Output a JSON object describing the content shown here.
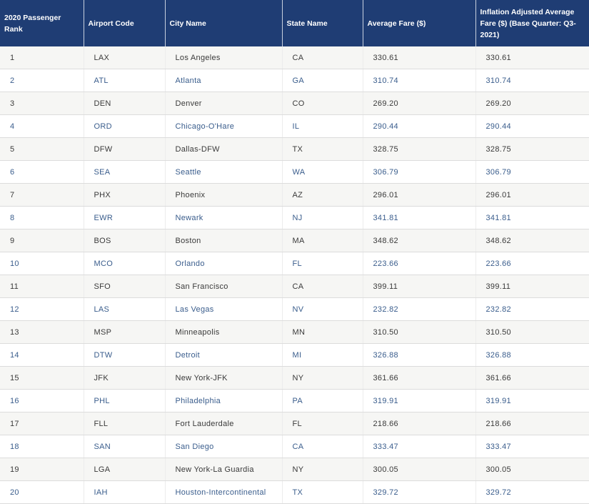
{
  "table": {
    "columns": [
      "2020 Passenger Rank",
      "Airport Code",
      "City Name",
      "State Name",
      "Average Fare ($)",
      "Inflation Adjusted Average Fare ($) (Base Quarter: Q3-2021)"
    ],
    "rows": [
      [
        "1",
        "LAX",
        "Los Angeles",
        "CA",
        "330.61",
        "330.61"
      ],
      [
        "2",
        "ATL",
        "Atlanta",
        "GA",
        "310.74",
        "310.74"
      ],
      [
        "3",
        "DEN",
        "Denver",
        "CO",
        "269.20",
        "269.20"
      ],
      [
        "4",
        "ORD",
        "Chicago-O'Hare",
        "IL",
        "290.44",
        "290.44"
      ],
      [
        "5",
        "DFW",
        "Dallas-DFW",
        "TX",
        "328.75",
        "328.75"
      ],
      [
        "6",
        "SEA",
        "Seattle",
        "WA",
        "306.79",
        "306.79"
      ],
      [
        "7",
        "PHX",
        "Phoenix",
        "AZ",
        "296.01",
        "296.01"
      ],
      [
        "8",
        "EWR",
        "Newark",
        "NJ",
        "341.81",
        "341.81"
      ],
      [
        "9",
        "BOS",
        "Boston",
        "MA",
        "348.62",
        "348.62"
      ],
      [
        "10",
        "MCO",
        "Orlando",
        "FL",
        "223.66",
        "223.66"
      ],
      [
        "11",
        "SFO",
        "San Francisco",
        "CA",
        "399.11",
        "399.11"
      ],
      [
        "12",
        "LAS",
        "Las Vegas",
        "NV",
        "232.82",
        "232.82"
      ],
      [
        "13",
        "MSP",
        "Minneapolis",
        "MN",
        "310.50",
        "310.50"
      ],
      [
        "14",
        "DTW",
        "Detroit",
        "MI",
        "326.88",
        "326.88"
      ],
      [
        "15",
        "JFK",
        "New York-JFK",
        "NY",
        "361.66",
        "361.66"
      ],
      [
        "16",
        "PHL",
        "Philadelphia",
        "PA",
        "319.91",
        "319.91"
      ],
      [
        "17",
        "FLL",
        "Fort Lauderdale",
        "FL",
        "218.66",
        "218.66"
      ],
      [
        "18",
        "SAN",
        "San Diego",
        "CA",
        "333.47",
        "333.47"
      ],
      [
        "19",
        "LGA",
        "New York-La Guardia",
        "NY",
        "300.05",
        "300.05"
      ],
      [
        "20",
        "IAH",
        "Houston-Intercontinental",
        "TX",
        "329.72",
        "329.72"
      ]
    ]
  }
}
